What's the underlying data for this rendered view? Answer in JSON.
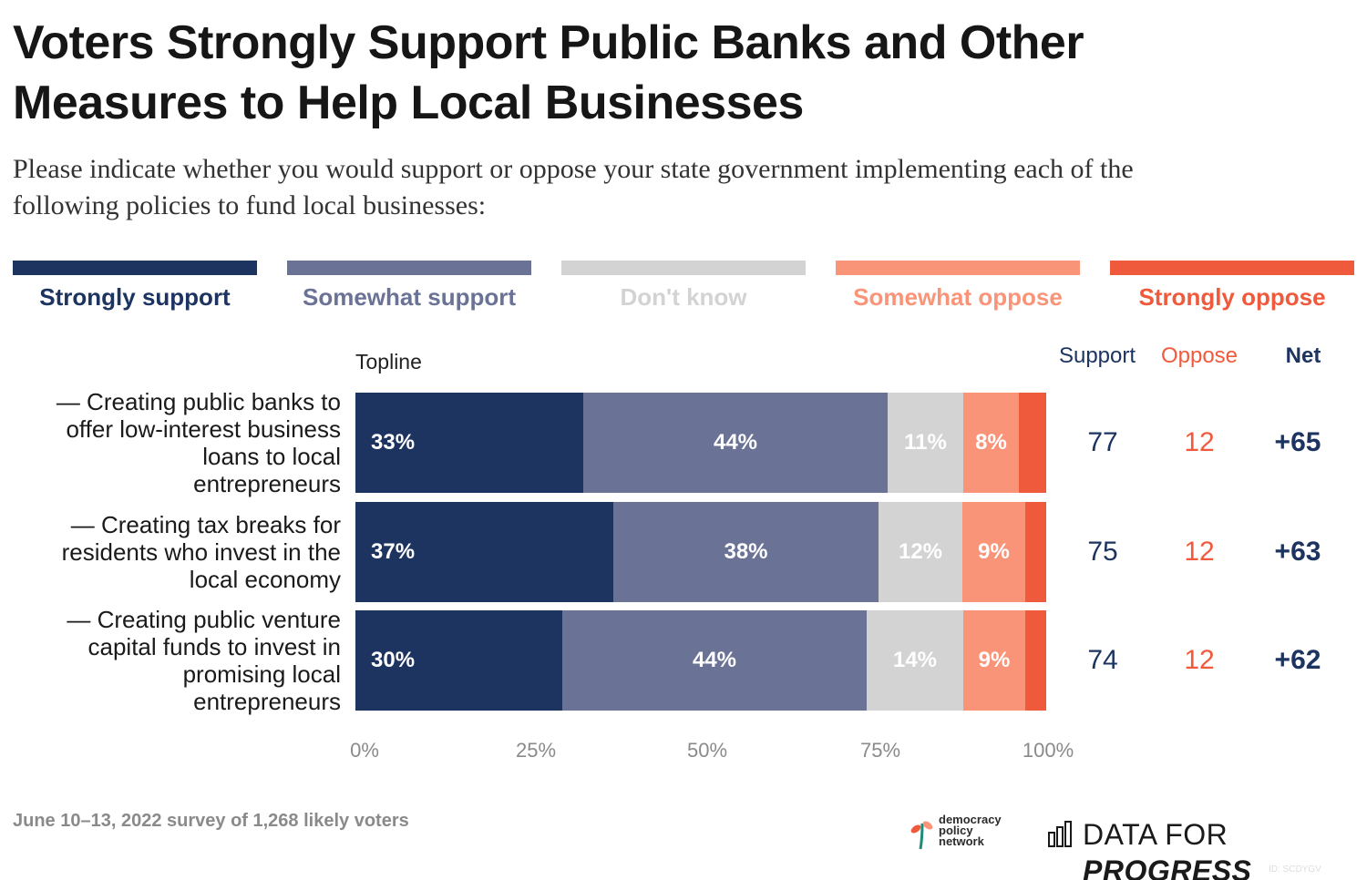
{
  "title_line1": "Voters Strongly Support Public Banks and Other",
  "title_line2": "Measures to Help Local Businesses",
  "subtitle_line1": "Please indicate whether you would support or oppose your state government implementing each of the",
  "subtitle_line2": "following policies to fund local businesses:",
  "topline_label": "Topline",
  "columns": {
    "support": "Support",
    "oppose": "Oppose",
    "net": "Net"
  },
  "footnote": "June 10–13, 2022 survey of 1,268 likely voters",
  "logos": {
    "dpn_line1": "democracy",
    "dpn_line2": "policy",
    "dpn_line3": "network",
    "dfp_prefix": "DATA FOR ",
    "dfp_emphasis": "PROGRESS"
  },
  "id_text": "ID: SCDYGV",
  "colors": {
    "strongly_support": "#1d3461",
    "somewhat_support": "#6a7396",
    "dont_know": "#d3d3d3",
    "somewhat_oppose": "#fa9479",
    "strongly_oppose": "#f05a3c"
  },
  "chart_data": {
    "type": "bar",
    "orientation": "horizontal",
    "stacked": true,
    "xlim": [
      0,
      100
    ],
    "x_ticks": [
      "0%",
      "25%",
      "50%",
      "75%",
      "100%"
    ],
    "legend": [
      "Strongly support",
      "Somewhat support",
      "Don't know",
      "Somewhat oppose",
      "Strongly oppose"
    ],
    "legend_position": "top",
    "categories": [
      "— Creating public banks to offer low-interest business loans to local entrepreneurs",
      "— Creating tax breaks for residents who invest in the local economy",
      "— Creating public venture capital funds to invest in promising local entrepreneurs"
    ],
    "category_lines": [
      [
        "— Creating public banks to",
        "offer low-interest business",
        "loans to local",
        "entrepreneurs"
      ],
      [
        "— Creating tax breaks for",
        "residents who invest in the",
        "local economy"
      ],
      [
        "— Creating public venture",
        "capital funds to invest in",
        "promising local",
        "entrepreneurs"
      ]
    ],
    "series": [
      {
        "name": "Strongly support",
        "values": [
          33,
          37,
          30
        ],
        "labels": [
          "33%",
          "37%",
          "30%"
        ]
      },
      {
        "name": "Somewhat support",
        "values": [
          44,
          38,
          44
        ],
        "labels": [
          "44%",
          "38%",
          "44%"
        ]
      },
      {
        "name": "Don't know",
        "values": [
          11,
          12,
          14
        ],
        "labels": [
          "11%",
          "12%",
          "14%"
        ]
      },
      {
        "name": "Somewhat oppose",
        "values": [
          8,
          9,
          9
        ],
        "labels": [
          "8%",
          "9%",
          "9%"
        ]
      },
      {
        "name": "Strongly oppose",
        "values": [
          4,
          3,
          3
        ],
        "labels": [
          "",
          "",
          ""
        ]
      }
    ],
    "support": [
      "77",
      "75",
      "74"
    ],
    "oppose": [
      "12",
      "12",
      "12"
    ],
    "net": [
      "+65",
      "+63",
      "+62"
    ]
  }
}
